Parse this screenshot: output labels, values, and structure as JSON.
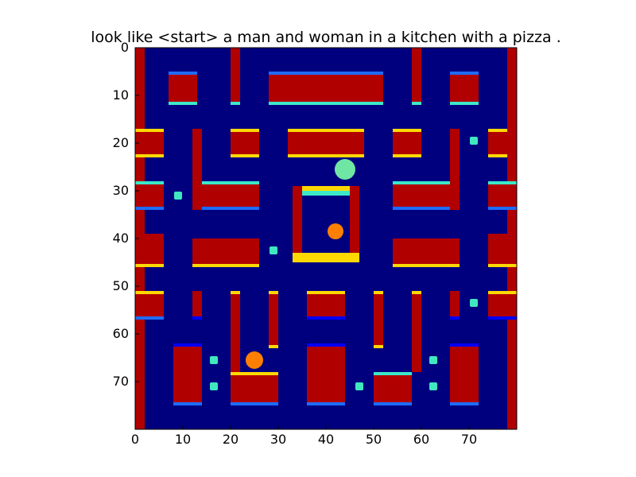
{
  "figure": {
    "title": "look like <start> a man and woman in a kitchen with a pizza .",
    "colormap": "jet",
    "background_color": "#ffffff",
    "axes_color": "#000000"
  },
  "image": {
    "grid_size": [
      80,
      80
    ],
    "x_ticks": [
      "0",
      "10",
      "20",
      "30",
      "40",
      "50",
      "60",
      "70"
    ],
    "y_ticks": [
      "0",
      "10",
      "20",
      "30",
      "40",
      "50",
      "60",
      "70"
    ],
    "colors": {
      "floor": "#00007f",
      "wall": "#b00000",
      "wall_edge_top": "#ffd800",
      "wall_edge_light": "#3ce8c8",
      "wall_edge_blue": "#1e6cff",
      "wall_edge_dark": "#0000ff",
      "pellet": "#40e8c0",
      "sprite_light": "#7cffa8",
      "sprite_dark": "#ff8000"
    }
  }
}
